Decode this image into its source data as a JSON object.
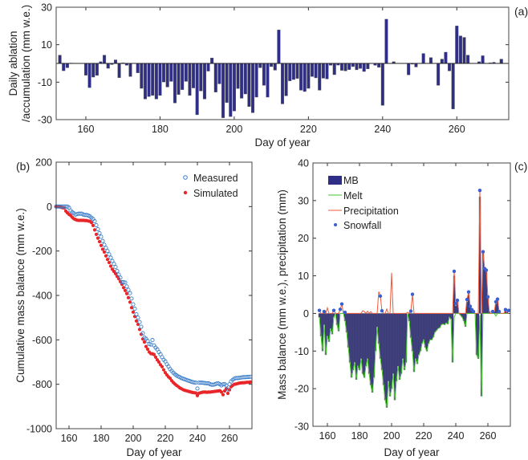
{
  "colors": {
    "mb_bar": "#2e2d87",
    "measured": "#3a7dc9",
    "simulated": "#e8262a",
    "melt": "#44c42a",
    "precipitation": "#f05a3a",
    "snowfall": "#3a5fcf",
    "bar_edge": "#6e6e6e"
  },
  "chart_data": [
    {
      "panel": "(a)",
      "type": "bar",
      "xlabel": "Day of year",
      "ylabel_line1": "Daily ablation",
      "ylabel_line2": "/accumulation (mm w.e.)",
      "xlim": [
        152,
        274
      ],
      "ylim": [
        -30,
        30
      ],
      "xticks": [
        160,
        180,
        200,
        220,
        240,
        260
      ],
      "yticks": [
        -30,
        -10,
        10,
        30
      ],
      "x": [
        153,
        154,
        155,
        156,
        157,
        158,
        159,
        160,
        161,
        162,
        163,
        164,
        165,
        166,
        167,
        168,
        169,
        170,
        171,
        172,
        173,
        174,
        175,
        176,
        177,
        178,
        179,
        180,
        181,
        182,
        183,
        184,
        185,
        186,
        187,
        188,
        189,
        190,
        191,
        192,
        193,
        194,
        195,
        196,
        197,
        198,
        199,
        200,
        201,
        202,
        203,
        204,
        205,
        206,
        207,
        208,
        209,
        210,
        211,
        212,
        213,
        214,
        215,
        216,
        217,
        218,
        219,
        220,
        221,
        222,
        223,
        224,
        225,
        226,
        227,
        228,
        229,
        230,
        231,
        232,
        233,
        234,
        235,
        236,
        237,
        238,
        239,
        240,
        241,
        242,
        243,
        244,
        245,
        246,
        247,
        248,
        249,
        250,
        251,
        252,
        253,
        254,
        255,
        256,
        257,
        258,
        259,
        260,
        261,
        262,
        263,
        264,
        265,
        266,
        267,
        268,
        269,
        270,
        271,
        272
      ],
      "values": [
        4.4,
        -3.9,
        -2.3,
        0.2,
        0,
        0,
        0,
        -6.3,
        -12.9,
        -7.3,
        -6.4,
        0.9,
        4.4,
        -2.6,
        -0.6,
        1.9,
        -7.6,
        0.3,
        -1,
        -7,
        0,
        -5,
        -13.3,
        -19,
        -17.7,
        -17.1,
        -19,
        -17.1,
        -9.9,
        -12.6,
        -9.6,
        -21.1,
        -16.6,
        -14,
        -9.6,
        -17.1,
        -13.1,
        -27.4,
        -14.7,
        -19,
        -4.1,
        2.9,
        -15.3,
        -10.9,
        -29,
        -20.9,
        -28.4,
        -25.4,
        -13.4,
        -18.6,
        -16.3,
        -23,
        -26.3,
        -18,
        -2.3,
        -11.7,
        -18,
        -1.7,
        -3.6,
        17.9,
        -21.6,
        -17.3,
        -9.3,
        -8.6,
        -8,
        -14.3,
        -15,
        -13.3,
        -7,
        -7.7,
        -14.3,
        -7.9,
        -8.3,
        -1,
        -6,
        -0.9,
        -3.7,
        -4,
        -3.3,
        -1.7,
        -3.4,
        -2.7,
        -4.3,
        -2.9,
        0,
        -1,
        -2.1,
        -22.4,
        23.6,
        0,
        0.9,
        0,
        0,
        0,
        -6.1,
        -0.4,
        -1.9,
        0,
        5.3,
        0,
        3.1,
        0,
        -11.7,
        2.3,
        6,
        -4,
        -24.3,
        20,
        14.7,
        13.9,
        4.4,
        0,
        0,
        0.9,
        4.1,
        0,
        0.3,
        0.6,
        0,
        2.3
      ]
    },
    {
      "panel": "(b)",
      "type": "scatter",
      "xlabel": "Day of year",
      "ylabel": "Cumulative mass balance (mm w.e.)",
      "xlim": [
        152,
        274
      ],
      "ylim": [
        -1000,
        200
      ],
      "xticks": [
        160,
        180,
        200,
        220,
        240,
        260
      ],
      "yticks": [
        -1000,
        -800,
        -600,
        -400,
        -200,
        0,
        200
      ],
      "legend": "top-right",
      "x": [
        152,
        153,
        154,
        155,
        156,
        157,
        158,
        159,
        160,
        161,
        162,
        163,
        164,
        165,
        166,
        167,
        168,
        169,
        170,
        171,
        172,
        173,
        174,
        175,
        176,
        177,
        178,
        179,
        180,
        181,
        182,
        183,
        184,
        185,
        186,
        187,
        188,
        189,
        190,
        191,
        192,
        193,
        194,
        195,
        196,
        197,
        198,
        199,
        200,
        201,
        202,
        203,
        204,
        205,
        206,
        207,
        208,
        209,
        210,
        211,
        212,
        213,
        214,
        215,
        216,
        217,
        218,
        219,
        220,
        221,
        222,
        223,
        224,
        225,
        226,
        227,
        228,
        229,
        230,
        231,
        232,
        233,
        234,
        235,
        236,
        237,
        238,
        239,
        240,
        241,
        242,
        243,
        244,
        245,
        246,
        247,
        248,
        249,
        250,
        251,
        252,
        253,
        254,
        255,
        256,
        257,
        258,
        259,
        260,
        261,
        262,
        263,
        264,
        265,
        266,
        267,
        268,
        269,
        270,
        271,
        272,
        273
      ],
      "series": [
        {
          "name": "Measured",
          "marker": "open-circle",
          "values": [
            0,
            0,
            0,
            0,
            0,
            0,
            0,
            0,
            -5,
            -18,
            -25,
            -30,
            -36,
            -34,
            -32,
            -32,
            -32,
            -36,
            -38,
            -38,
            -40,
            -44,
            -50,
            -56,
            -66,
            -84,
            -102,
            -120,
            -136,
            -155,
            -172,
            -186,
            -200,
            -215,
            -230,
            -245,
            -258,
            -272,
            -290,
            -306,
            -320,
            -340,
            -340,
            -342,
            -360,
            -375,
            -390,
            -414,
            -440,
            -460,
            -485,
            -500,
            -520,
            -541,
            -570,
            -590,
            -595,
            -605,
            -619,
            -621,
            -601,
            -625,
            -635,
            -643,
            -655,
            -665,
            -678,
            -690,
            -697,
            -710,
            -720,
            -732,
            -740,
            -748,
            -755,
            -760,
            -765,
            -768,
            -772,
            -775,
            -777,
            -780,
            -783,
            -785,
            -788,
            -790,
            -792,
            -793,
            -819,
            -793,
            -793,
            -793,
            -794,
            -795,
            -796,
            -796,
            -800,
            -802,
            -802,
            -800,
            -797,
            -796,
            -800,
            -805,
            -800,
            -799,
            -805,
            -823,
            -800,
            -787,
            -780,
            -775,
            -772,
            -772,
            -771,
            -770,
            -769,
            -768,
            -768,
            -767,
            -767,
            -766
          ]
        },
        {
          "name": "Simulated",
          "marker": "filled-dot",
          "values": [
            0,
            0,
            0,
            -3,
            -5,
            -6,
            -20,
            -28,
            -35,
            -40,
            -48,
            -55,
            -58,
            -61,
            -62,
            -62,
            -62,
            -62,
            -63,
            -63,
            -65,
            -66,
            -72,
            -85,
            -105,
            -125,
            -142,
            -158,
            -175,
            -192,
            -205,
            -222,
            -238,
            -252,
            -268,
            -282,
            -292,
            -302,
            -314,
            -325,
            -338,
            -350,
            -365,
            -378,
            -392,
            -410,
            -430,
            -455,
            -475,
            -495,
            -515,
            -530,
            -553,
            -575,
            -596,
            -610,
            -630,
            -642,
            -655,
            -662,
            -663,
            -666,
            -678,
            -690,
            -700,
            -712,
            -721,
            -735,
            -748,
            -758,
            -767,
            -773,
            -784,
            -792,
            -799,
            -805,
            -810,
            -816,
            -820,
            -824,
            -827,
            -829,
            -831,
            -833,
            -835,
            -837,
            -838,
            -839,
            -851,
            -840,
            -838,
            -836,
            -835,
            -835,
            -836,
            -835,
            -835,
            -834,
            -833,
            -832,
            -831,
            -830,
            -829,
            -835,
            -847,
            -830,
            -820,
            -841,
            -825,
            -811,
            -805,
            -800,
            -799,
            -797,
            -795,
            -794,
            -793,
            -793,
            -792,
            -791,
            -791,
            -790
          ]
        }
      ]
    },
    {
      "panel": "(c)",
      "type": "bar+line",
      "xlabel": "Day of year",
      "ylabel": "Mass balance (mm w.e.), precipitation (mm)",
      "xlim": [
        151,
        274
      ],
      "ylim": [
        -30,
        40
      ],
      "xticks": [
        160,
        180,
        200,
        220,
        240,
        260
      ],
      "yticks": [
        -30,
        -20,
        -10,
        0,
        10,
        20,
        30,
        40
      ],
      "legend": "top-left",
      "x": [
        155,
        156,
        157,
        158,
        159,
        160,
        161,
        162,
        163,
        164,
        165,
        166,
        167,
        168,
        169,
        170,
        171,
        172,
        173,
        174,
        175,
        176,
        177,
        178,
        179,
        180,
        181,
        182,
        183,
        184,
        185,
        186,
        187,
        188,
        189,
        190,
        191,
        192,
        193,
        194,
        195,
        196,
        197,
        198,
        199,
        200,
        201,
        202,
        203,
        204,
        205,
        206,
        207,
        208,
        209,
        210,
        211,
        212,
        213,
        214,
        215,
        216,
        217,
        218,
        219,
        220,
        221,
        222,
        223,
        224,
        225,
        226,
        227,
        228,
        229,
        230,
        231,
        232,
        233,
        234,
        235,
        236,
        237,
        238,
        239,
        240,
        241,
        242,
        243,
        244,
        245,
        246,
        247,
        248,
        249,
        250,
        251,
        252,
        253,
        254,
        255,
        256,
        257,
        258,
        259,
        260,
        261,
        262,
        263,
        264,
        265,
        266,
        267,
        268,
        269,
        270,
        271,
        272,
        273
      ],
      "series": [
        {
          "name": "MB",
          "kind": "bar",
          "values": [
            -1,
            -6,
            -10,
            -3,
            -11,
            -6,
            -7.5,
            -4,
            -5.5,
            -1,
            0,
            -3,
            -4.7,
            0,
            0,
            0,
            -2,
            -5,
            -9,
            -13,
            -17,
            -15,
            -13,
            -17.6,
            -14,
            -15,
            -12,
            -16,
            -17,
            -14,
            -12,
            -16,
            -19,
            -21,
            -17,
            -10,
            -3.6,
            -8,
            -12,
            -15,
            -19,
            -23,
            -25,
            -18,
            -22,
            -20,
            -16,
            -23,
            -18,
            -14,
            -17.6,
            -16,
            -12,
            -15,
            -13,
            0,
            -2,
            -6.4,
            -10,
            -15.5,
            -12,
            -13.4,
            -11,
            -10,
            -8,
            -7,
            -9,
            -10,
            -8,
            -7,
            -7,
            -6.3,
            -5,
            -4.5,
            -4,
            -3.8,
            -3,
            -2.8,
            -3,
            -2.5,
            -2.8,
            -1,
            -1.5,
            -13,
            10,
            2,
            3,
            0,
            -0.5,
            -1,
            -2,
            -3.5,
            3,
            5,
            1.5,
            1,
            0.5,
            0,
            -11,
            -12,
            31,
            -22,
            16,
            11.5,
            11,
            4,
            0.5,
            0,
            0,
            0.5,
            2.5,
            3.5,
            0.5,
            0,
            0,
            0,
            1,
            0.5,
            0
          ]
        },
        {
          "name": "Melt",
          "kind": "line",
          "values": [
            -1,
            -6,
            -10,
            -3,
            -11,
            -6,
            -7.5,
            -4,
            -5.5,
            -1,
            0,
            -3,
            -4.7,
            0,
            0,
            0,
            -2,
            -5,
            -9,
            -13,
            -17,
            -15,
            -13,
            -17.6,
            -14,
            -15,
            -12,
            -16,
            -17,
            -14,
            -12,
            -16,
            -19,
            -21,
            -17,
            -10,
            -3.6,
            -8,
            -12,
            -15,
            -19,
            -23,
            -25,
            -18,
            -22,
            -20,
            -16,
            -23,
            -18,
            -14,
            -17.6,
            -16,
            -12,
            -15,
            -13,
            0,
            -2,
            -6.4,
            -10,
            -15.5,
            -12,
            -13.4,
            -11,
            -10,
            -8,
            -7,
            -9,
            -10,
            -8,
            -7,
            -7,
            -6.3,
            -5,
            -4.5,
            -4,
            -3.8,
            -3,
            -2.8,
            -3,
            -2.5,
            -2.8,
            -1,
            -1.5,
            -13,
            -1,
            0,
            0,
            0,
            -0.5,
            -1,
            -2,
            -3.5,
            0,
            0,
            0,
            0,
            0,
            0,
            -11,
            -12,
            -0.5,
            -22,
            0,
            0,
            0,
            0,
            0,
            0,
            0,
            0,
            -0.7,
            0,
            0,
            0,
            0,
            0,
            0,
            0,
            0
          ]
        },
        {
          "name": "Precipitation",
          "kind": "line",
          "values": [
            0.8,
            0,
            0,
            0.5,
            0,
            1.5,
            0,
            0,
            0,
            0.8,
            0,
            0,
            0,
            1.1,
            2.5,
            0,
            0.3,
            0,
            0,
            0,
            0,
            0,
            0,
            0,
            0,
            0,
            0,
            0.7,
            0.5,
            0,
            0.6,
            0,
            0.5,
            0,
            0,
            0,
            0,
            5.8,
            4.6,
            0.7,
            0,
            0,
            1.2,
            0,
            0,
            10.8,
            0,
            0,
            0,
            0,
            0,
            0,
            0,
            0,
            0,
            0.3,
            0,
            0.6,
            5.1,
            0,
            0,
            0,
            0,
            0,
            0,
            0,
            0,
            0,
            0,
            0,
            0,
            0,
            0,
            0,
            0,
            0,
            0,
            0,
            0,
            0,
            0,
            0,
            0,
            0,
            11.2,
            2.6,
            3.5,
            0,
            0,
            0,
            0,
            0,
            3.7,
            5.7,
            1.9,
            1,
            0.5,
            0,
            0,
            0,
            32.7,
            0,
            16.4,
            11.9,
            11.5,
            4.4,
            0,
            0,
            0.5,
            0.5,
            3.1,
            3.8,
            0.5,
            0,
            0,
            0,
            1,
            0,
            0
          ]
        },
        {
          "name": "Snowfall",
          "kind": "points",
          "x": [
            155,
            158,
            164,
            168,
            169,
            171,
            193,
            194,
            212,
            213,
            239,
            240,
            241,
            247,
            248,
            249,
            250,
            251,
            255,
            257,
            258,
            259,
            260,
            263,
            265,
            266,
            267,
            271,
            273
          ],
          "values": [
            0.8,
            0.5,
            0.8,
            1.1,
            2.5,
            0.3,
            4.6,
            0.7,
            0.6,
            5.1,
            11.2,
            2.6,
            3.5,
            3.7,
            5.7,
            1.9,
            1,
            0.5,
            32.7,
            16.4,
            11.9,
            11.5,
            4.4,
            0.5,
            3.1,
            3.8,
            0.5,
            1,
            0.8
          ]
        }
      ]
    }
  ]
}
